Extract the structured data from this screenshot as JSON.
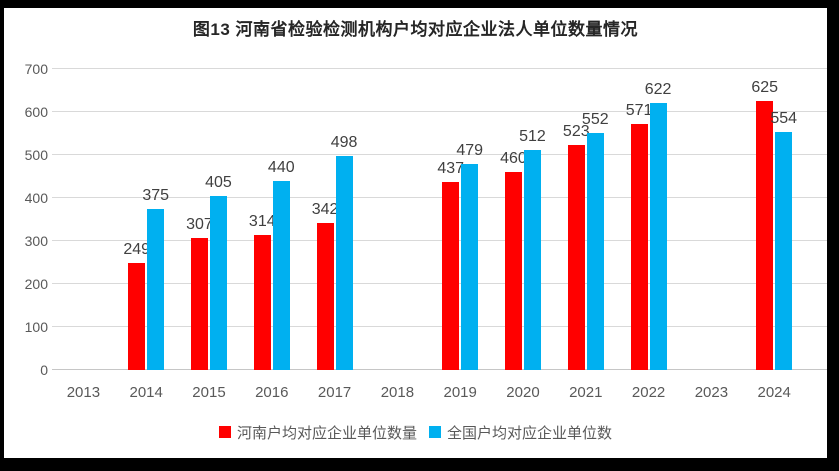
{
  "title": "图13  河南省检验检测机构户均对应企业法人单位数量情况",
  "chart_data": {
    "type": "bar",
    "title": "图13  河南省检验检测机构户均对应企业法人单位数量情况",
    "categories": [
      "2013",
      "2014",
      "2015",
      "2016",
      "2017",
      "2018",
      "2019",
      "2020",
      "2021",
      "2022",
      "2023",
      "2024"
    ],
    "series": [
      {
        "name": "河南户均对应企业单位数量",
        "color": "#FF0000",
        "values": [
          null,
          249,
          307,
          314,
          342,
          null,
          437,
          460,
          523,
          571,
          null,
          625
        ]
      },
      {
        "name": "全国户均对应企业单位数",
        "color": "#00B0F0",
        "values": [
          null,
          375,
          405,
          440,
          498,
          null,
          479,
          512,
          552,
          622,
          null,
          554
        ]
      }
    ],
    "xlabel": "",
    "ylabel": "",
    "ylim": [
      0,
      700
    ],
    "yticks": [
      0,
      100,
      200,
      300,
      400,
      500,
      600,
      700
    ],
    "grid": true,
    "data_labels": true,
    "legend_position": "bottom"
  },
  "colors": {
    "background": "#FFFFFF",
    "frame_border": "#000000",
    "gridline": "#D9D9D9",
    "axis_line": "#C6C6C6",
    "tick_label": "#595959",
    "data_label": "#404040",
    "title": "#262626",
    "series_henan": "#FF0000",
    "series_national": "#00B0F0"
  }
}
